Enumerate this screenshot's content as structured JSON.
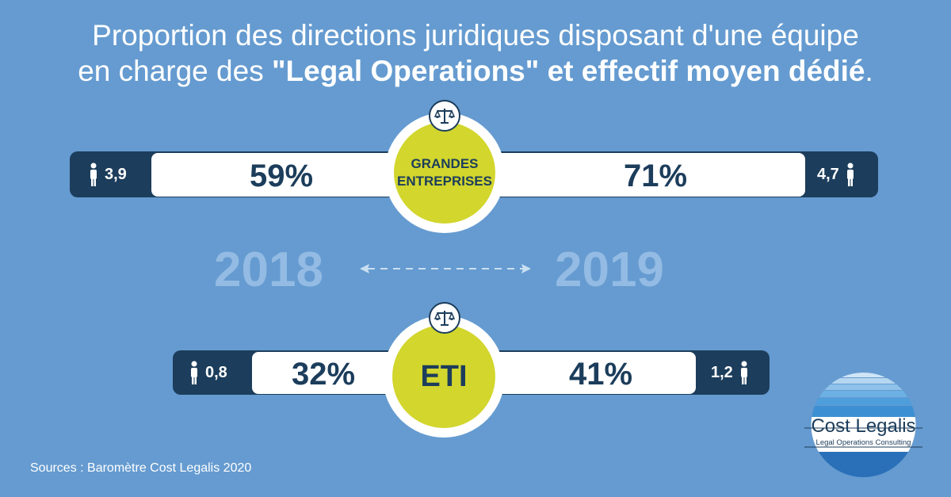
{
  "title": {
    "line1": "Proportion des directions juridiques disposant d'une équipe",
    "line2_pre": "en charge des ",
    "line2_bold": "\"Legal Operations\" et effectif moyen dédié",
    "line2_post": "."
  },
  "grandes_entreprises": {
    "label_line1": "GRANDES",
    "label_line2": "ENTREPRISES",
    "pct_2018": "59%",
    "pct_2019": "71%",
    "fte_2018": "3,9",
    "fte_2019": "4,7"
  },
  "eti": {
    "label": "ETI",
    "pct_2018": "32%",
    "pct_2019": "41%",
    "fte_2018": "0,8",
    "fte_2019": "1,2"
  },
  "years": {
    "left": "2018",
    "right": "2019"
  },
  "source": "Sources : Baromètre Cost Legalis 2020",
  "logo": {
    "name": "Cost Legalis",
    "tagline": "Legal Operations Consulting"
  },
  "colors": {
    "background": "#659bd0",
    "dark_navy": "#1c3d5b",
    "lime": "#d2d62d",
    "year_light": "#93bbe3"
  },
  "icons": [
    "person-icon",
    "scales-icon",
    "double-arrow-icon"
  ]
}
